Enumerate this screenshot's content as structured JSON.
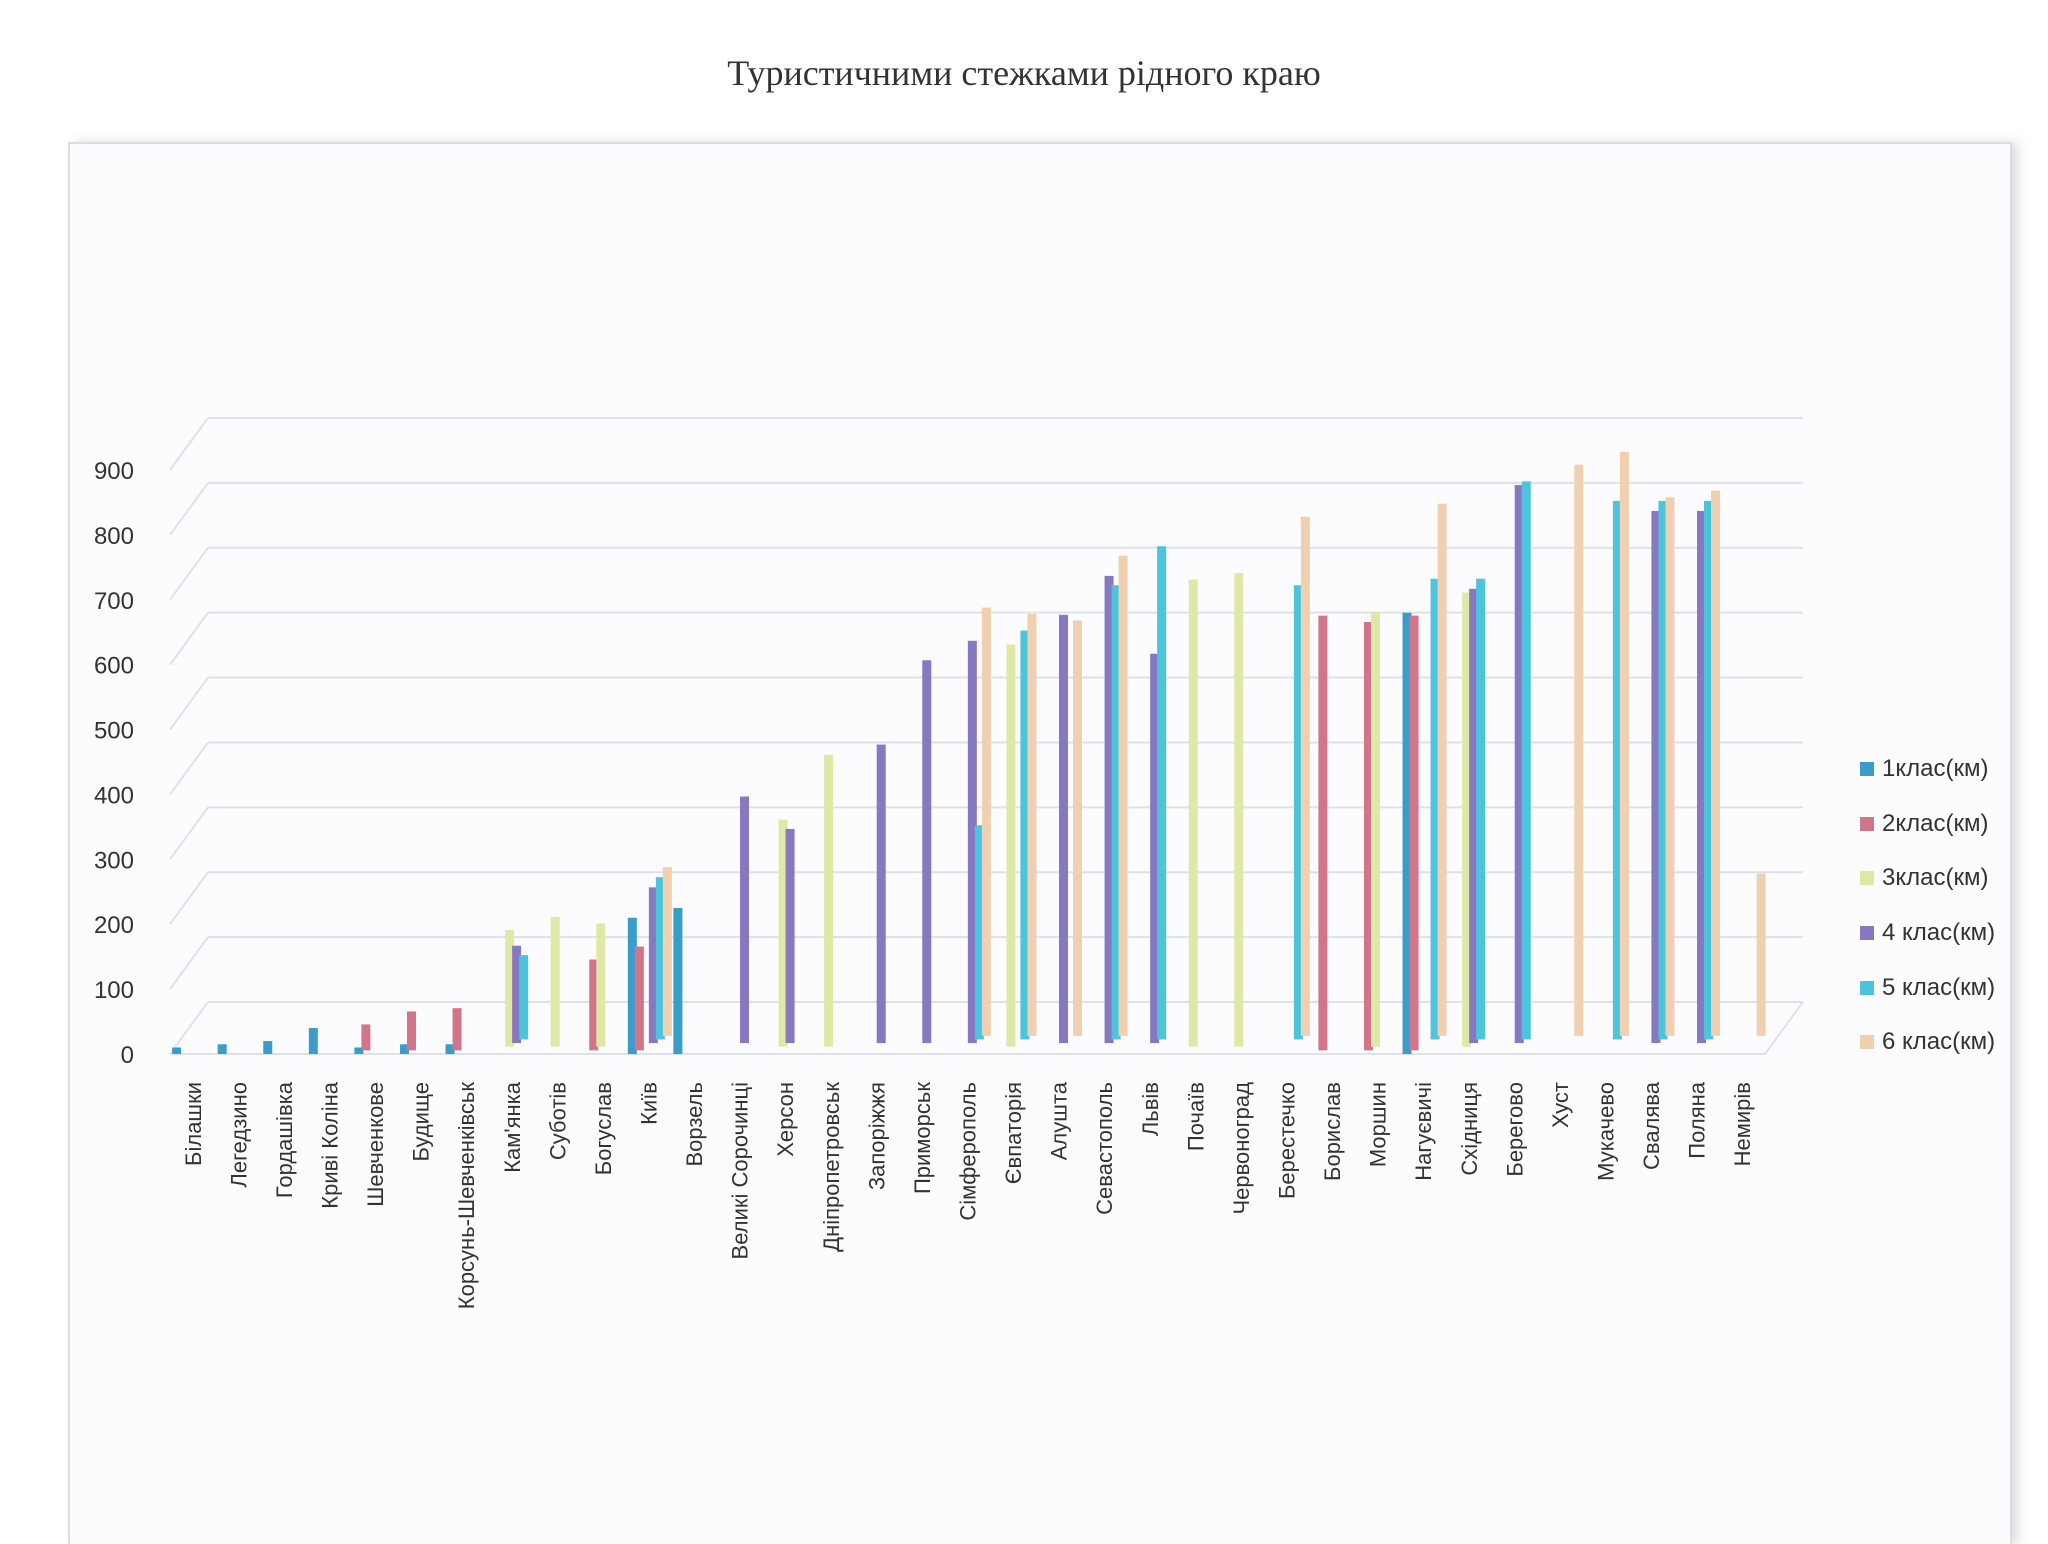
{
  "chart_data": {
    "type": "bar",
    "title": "Туристичними стежками рідного краю",
    "xlabel": "",
    "ylabel": "",
    "ylim": [
      0,
      900
    ],
    "yticks": [
      0,
      100,
      200,
      300,
      400,
      500,
      600,
      700,
      800,
      900
    ],
    "grid": true,
    "legend_position": "right",
    "categories": [
      "Білашки",
      "Легедзино",
      "Гордашівка",
      "Криві Коліна",
      "Шевченкове",
      "Будище",
      "Корсунь-Шевченківськ",
      "Кам'янка",
      "Суботів",
      "Богуслав",
      "Київ",
      "Ворзель",
      "Великі Сорочинці",
      "Херсон",
      "Дніпропетровськ",
      "Запоріжжя",
      "Приморськ",
      "Сімферополь",
      "Євпаторія",
      "Алушта",
      "Севастополь",
      "Львів",
      "Почаїв",
      "Червоноград",
      "Берестечко",
      "Борислав",
      "Моршин",
      "Нагуєвичі",
      "Східниця",
      "Берегово",
      "Хуст",
      "Мукачево",
      "Свалява",
      "Поляна",
      "Немирів"
    ],
    "series": [
      {
        "name": "1клас(км)",
        "color": "#3a9cc8",
        "values": [
          10,
          15,
          20,
          40,
          10,
          15,
          15,
          0,
          0,
          0,
          210,
          225,
          0,
          0,
          0,
          0,
          0,
          0,
          0,
          0,
          0,
          0,
          0,
          0,
          0,
          0,
          0,
          680,
          0,
          0,
          0,
          0,
          0,
          0,
          0
        ]
      },
      {
        "name": "2клас(км)",
        "color": "#d2748a",
        "values": [
          0,
          0,
          0,
          0,
          40,
          60,
          65,
          0,
          0,
          140,
          160,
          0,
          0,
          0,
          0,
          0,
          0,
          0,
          0,
          0,
          0,
          0,
          0,
          0,
          0,
          670,
          660,
          670,
          0,
          0,
          0,
          0,
          0,
          0,
          0
        ]
      },
      {
        "name": "3клас(км)",
        "color": "#e0e8a8",
        "values": [
          0,
          0,
          0,
          0,
          0,
          0,
          0,
          180,
          200,
          190,
          0,
          0,
          0,
          350,
          450,
          0,
          0,
          0,
          620,
          0,
          0,
          0,
          720,
          730,
          0,
          0,
          670,
          0,
          700,
          0,
          0,
          0,
          0,
          0,
          0
        ]
      },
      {
        "name": "4 клас(км)",
        "color": "#8878c0",
        "values": [
          0,
          0,
          0,
          0,
          0,
          0,
          0,
          150,
          0,
          0,
          240,
          0,
          380,
          330,
          0,
          460,
          590,
          620,
          0,
          660,
          720,
          600,
          0,
          0,
          0,
          0,
          0,
          0,
          700,
          860,
          0,
          0,
          820,
          820,
          0
        ]
      },
      {
        "name": "5 клас(км)",
        "color": "#4cc4dc",
        "values": [
          0,
          0,
          0,
          0,
          0,
          0,
          0,
          130,
          0,
          0,
          250,
          0,
          0,
          0,
          0,
          0,
          0,
          330,
          630,
          0,
          700,
          760,
          0,
          0,
          700,
          0,
          0,
          710,
          710,
          860,
          0,
          830,
          830,
          830,
          0
        ]
      },
      {
        "name": "6 клас(км)",
        "color": "#f0d0b0",
        "values": [
          0,
          0,
          0,
          0,
          0,
          0,
          0,
          0,
          0,
          0,
          260,
          0,
          0,
          0,
          0,
          0,
          0,
          660,
          650,
          640,
          740,
          0,
          0,
          0,
          800,
          0,
          0,
          820,
          0,
          0,
          880,
          900,
          830,
          840,
          250
        ]
      }
    ]
  }
}
